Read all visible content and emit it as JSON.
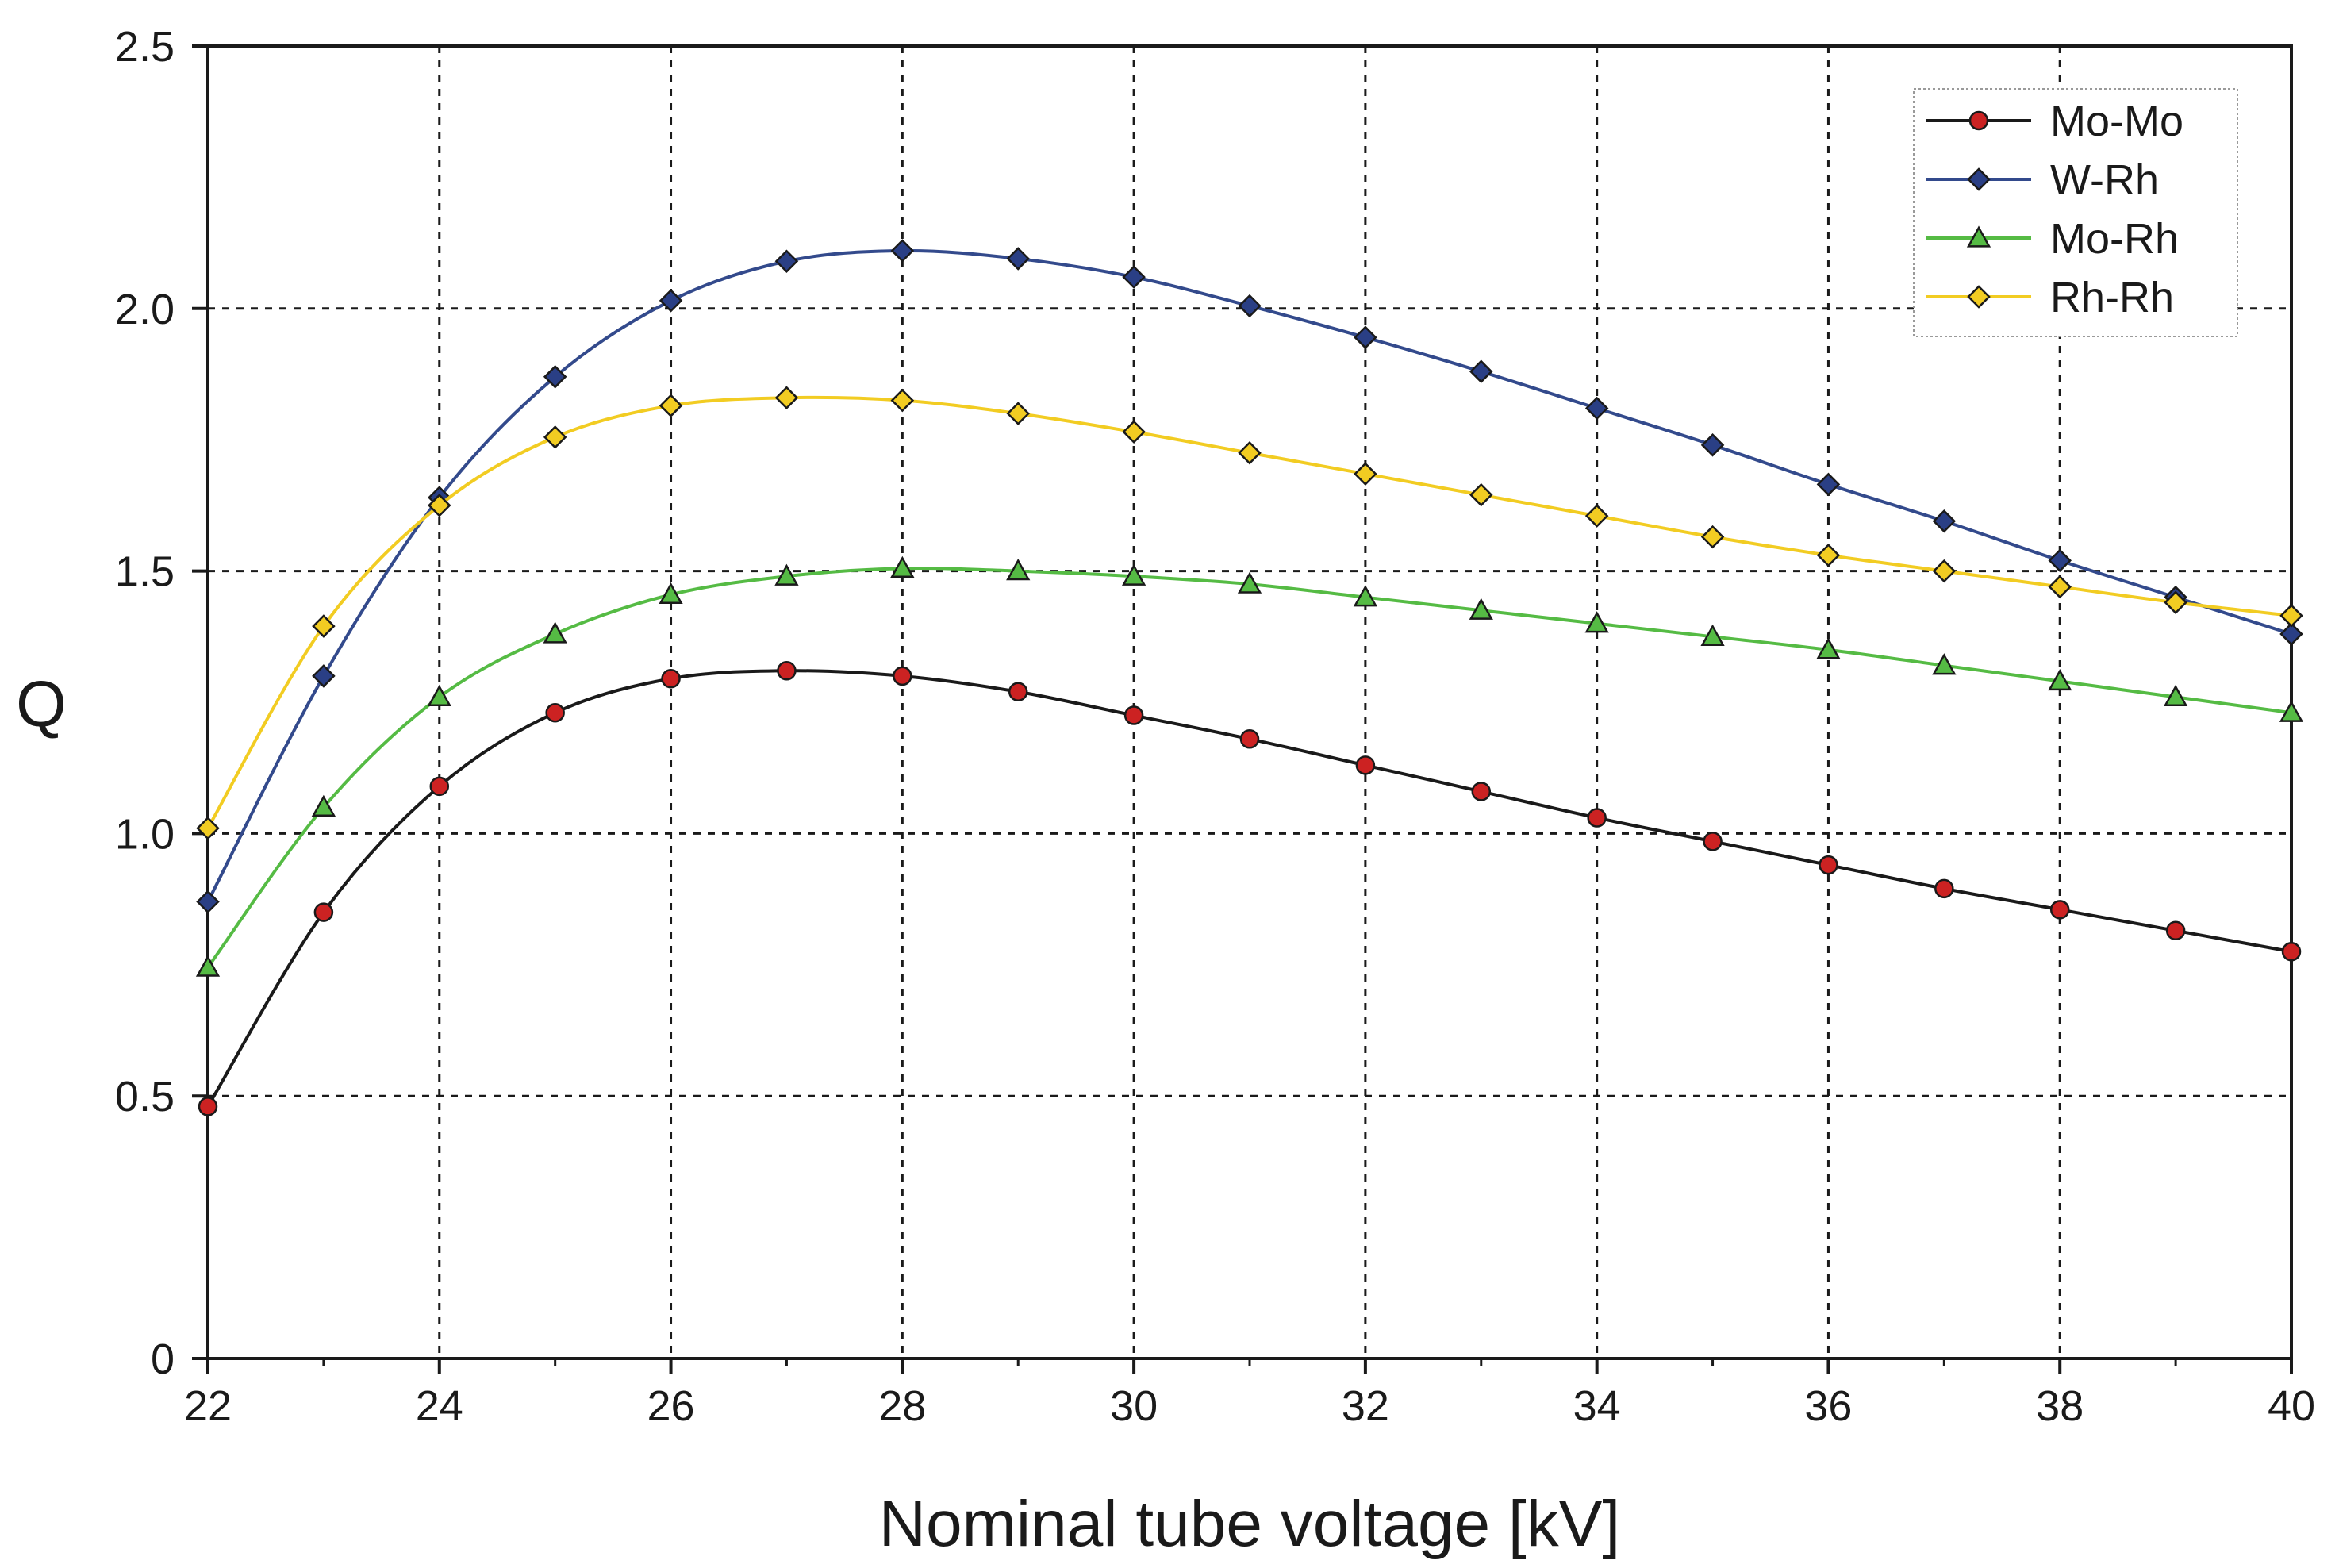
{
  "chart_data": {
    "type": "line",
    "title": "",
    "xlabel": "Nominal tube voltage [kV]",
    "ylabel": "Q",
    "xlim": [
      22,
      40
    ],
    "ylim": [
      0,
      2.5
    ],
    "x_ticks": [
      "22",
      "24",
      "26",
      "28",
      "30",
      "32",
      "34",
      "36",
      "38",
      "40"
    ],
    "y_ticks": [
      "0",
      "0.5",
      "1.0",
      "1.5",
      "2.0",
      "2.5"
    ],
    "grid": true,
    "legend_position": "top-right",
    "x": [
      22,
      23,
      24,
      25,
      26,
      27,
      28,
      29,
      30,
      31,
      32,
      33,
      34,
      35,
      36,
      37,
      38,
      39,
      40
    ],
    "series": [
      {
        "name": "Mo-Mo",
        "color": "#1a1a1a",
        "marker": "circle",
        "marker_color": "#cc2222",
        "values": [
          0.48,
          0.85,
          1.09,
          1.23,
          1.295,
          1.31,
          1.3,
          1.27,
          1.225,
          1.18,
          1.13,
          1.08,
          1.03,
          0.985,
          0.94,
          0.895,
          0.855,
          0.815,
          0.775
        ]
      },
      {
        "name": "W-Rh",
        "color": "#334a8c",
        "marker": "diamond",
        "marker_color": "#2a3f85",
        "values": [
          0.87,
          1.3,
          1.64,
          1.87,
          2.015,
          2.09,
          2.11,
          2.095,
          2.06,
          2.005,
          1.945,
          1.88,
          1.81,
          1.74,
          1.665,
          1.595,
          1.52,
          1.45,
          1.38
        ]
      },
      {
        "name": "Mo-Rh",
        "color": "#55bb44",
        "marker": "triangle",
        "marker_color": "#55bb44",
        "values": [
          0.745,
          1.05,
          1.26,
          1.38,
          1.455,
          1.49,
          1.505,
          1.5,
          1.49,
          1.475,
          1.45,
          1.425,
          1.4,
          1.375,
          1.35,
          1.32,
          1.29,
          1.26,
          1.23
        ]
      },
      {
        "name": "Rh-Rh",
        "color": "#f2cc22",
        "marker": "diamond",
        "marker_color": "#f2cc22",
        "values": [
          1.01,
          1.395,
          1.625,
          1.755,
          1.815,
          1.83,
          1.825,
          1.8,
          1.765,
          1.725,
          1.685,
          1.645,
          1.605,
          1.565,
          1.53,
          1.5,
          1.47,
          1.44,
          1.415
        ]
      }
    ]
  }
}
